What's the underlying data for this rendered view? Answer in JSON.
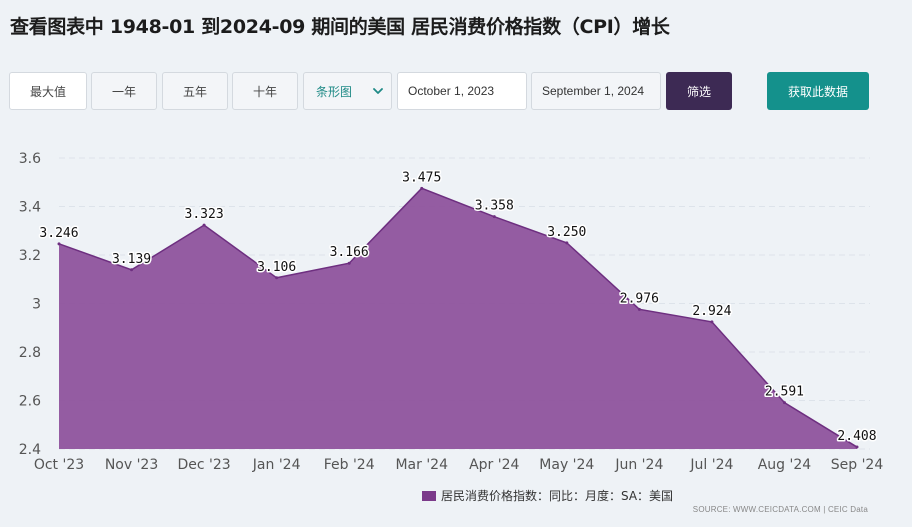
{
  "title": "查看图表中 1948-01 到2024-09 期间的美国 居民消费价格指数（CPI）增长",
  "toolbar": {
    "range_buttons": [
      "最大值",
      "一年",
      "五年",
      "十年"
    ],
    "chart_type": "条形图",
    "start_date": "October 1, 2023",
    "end_date": "September 1, 2024",
    "filter_label": "筛选",
    "get_data_label": "获取此数据"
  },
  "colors": {
    "area_fill": "#8c4f9a",
    "area_line": "#6e2f80",
    "filter_button": "#3d2a54",
    "get_data_button": "#14918c",
    "background": "#eef2f6"
  },
  "chart_data": {
    "type": "area",
    "categories": [
      "Oct '23",
      "Nov '23",
      "Dec '23",
      "Jan '24",
      "Feb '24",
      "Mar '24",
      "Apr '24",
      "May '24",
      "Jun '24",
      "Jul '24",
      "Aug '24",
      "Sep '24"
    ],
    "series": [
      {
        "name": "居民消费价格指数：同比：月度：SA：美国",
        "values": [
          3.246,
          3.139,
          3.323,
          3.106,
          3.166,
          3.475,
          3.358,
          3.25,
          2.976,
          2.924,
          2.591,
          2.408
        ],
        "labels": [
          "3.246",
          "3.139",
          "3.323",
          "3.106",
          "3.166",
          "3.475",
          "3.358",
          "3.250",
          "2.976",
          "2.924",
          "2.591",
          "2.408"
        ]
      }
    ],
    "yticks": [
      "3.6",
      "3.4",
      "3.2",
      "3",
      "2.8",
      "2.6",
      "2.4"
    ],
    "ytick_values": [
      3.6,
      3.4,
      3.2,
      3.0,
      2.8,
      2.6,
      2.4
    ],
    "ylim": [
      2.4,
      3.6
    ],
    "grid": true,
    "legend_position": "bottom"
  },
  "legend_label": "居民消费价格指数：同比：月度：SA：美国",
  "source_text": "SOURCE: WWW.CEICDATA.COM | CEIC Data"
}
